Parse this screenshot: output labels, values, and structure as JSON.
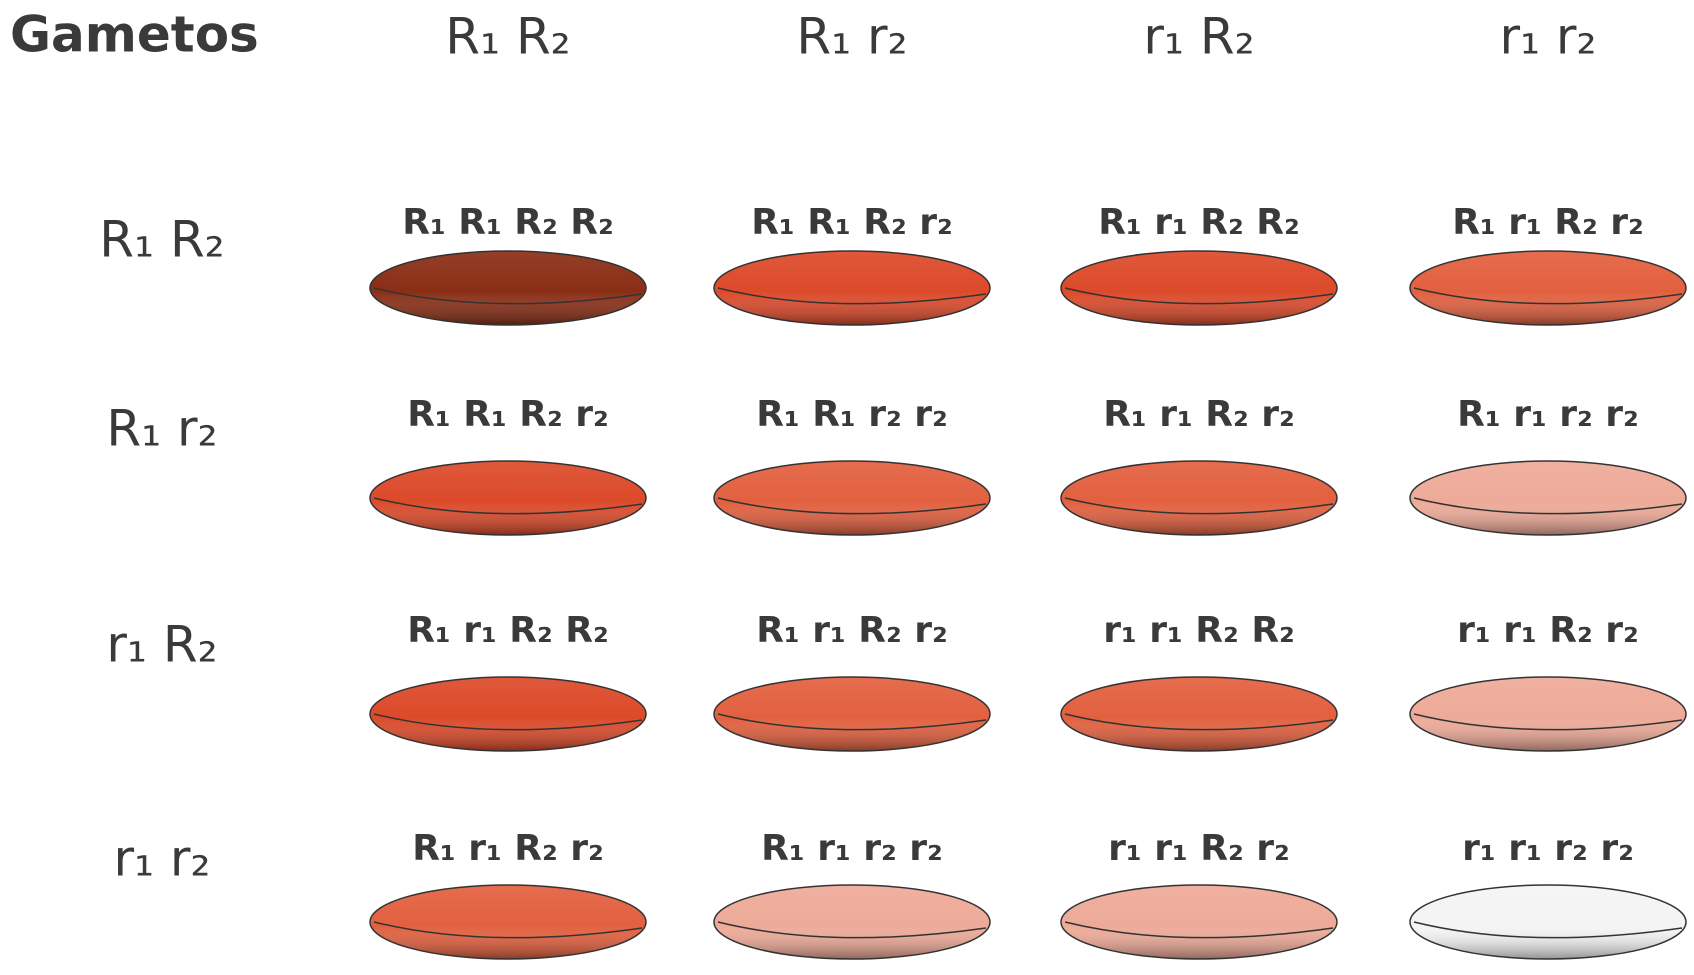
{
  "header": "Gametos",
  "columns": [
    "R₁ R₂",
    "R₁ r₂",
    "r₁ R₂",
    "r₁ r₂"
  ],
  "rows": [
    {
      "label": "R₁ R₂",
      "cells": [
        {
          "genotype": "R₁ R₁ R₂ R₂",
          "color": "#8a2e16"
        },
        {
          "genotype": "R₁ R₁ R₂ r₂",
          "color": "#dc4a2a"
        },
        {
          "genotype": "R₁ r₁ R₂ R₂",
          "color": "#dc4a2a"
        },
        {
          "genotype": "R₁ r₁ R₂ r₂",
          "color": "#e2603f"
        }
      ]
    },
    {
      "label": "R₁ r₂",
      "cells": [
        {
          "genotype": "R₁ R₁ R₂ r₂",
          "color": "#dc4a2a"
        },
        {
          "genotype": "R₁ R₁ r₂ r₂",
          "color": "#e2603f"
        },
        {
          "genotype": "R₁ r₁ R₂ r₂",
          "color": "#e2603f"
        },
        {
          "genotype": "R₁ r₁ r₂ r₂",
          "color": "#eeaa98"
        }
      ]
    },
    {
      "label": "r₁ R₂",
      "cells": [
        {
          "genotype": "R₁ r₁ R₂ R₂",
          "color": "#dc4a2a"
        },
        {
          "genotype": "R₁ r₁ R₂ r₂",
          "color": "#e2603f"
        },
        {
          "genotype": "r₁ r₁ R₂ R₂",
          "color": "#e2603f"
        },
        {
          "genotype": "r₁ r₁ R₂ r₂",
          "color": "#eeaa98"
        }
      ]
    },
    {
      "label": "r₁ r₂",
      "cells": [
        {
          "genotype": "R₁ r₁ R₂ r₂",
          "color": "#e2603f"
        },
        {
          "genotype": "R₁ r₁ r₂ r₂",
          "color": "#eeaa98"
        },
        {
          "genotype": "r₁ r₁ R₂ r₂",
          "color": "#eeaa98"
        },
        {
          "genotype": "r₁ r₁ r₂ r₂",
          "color": "#f4f4f4"
        }
      ]
    }
  ]
}
